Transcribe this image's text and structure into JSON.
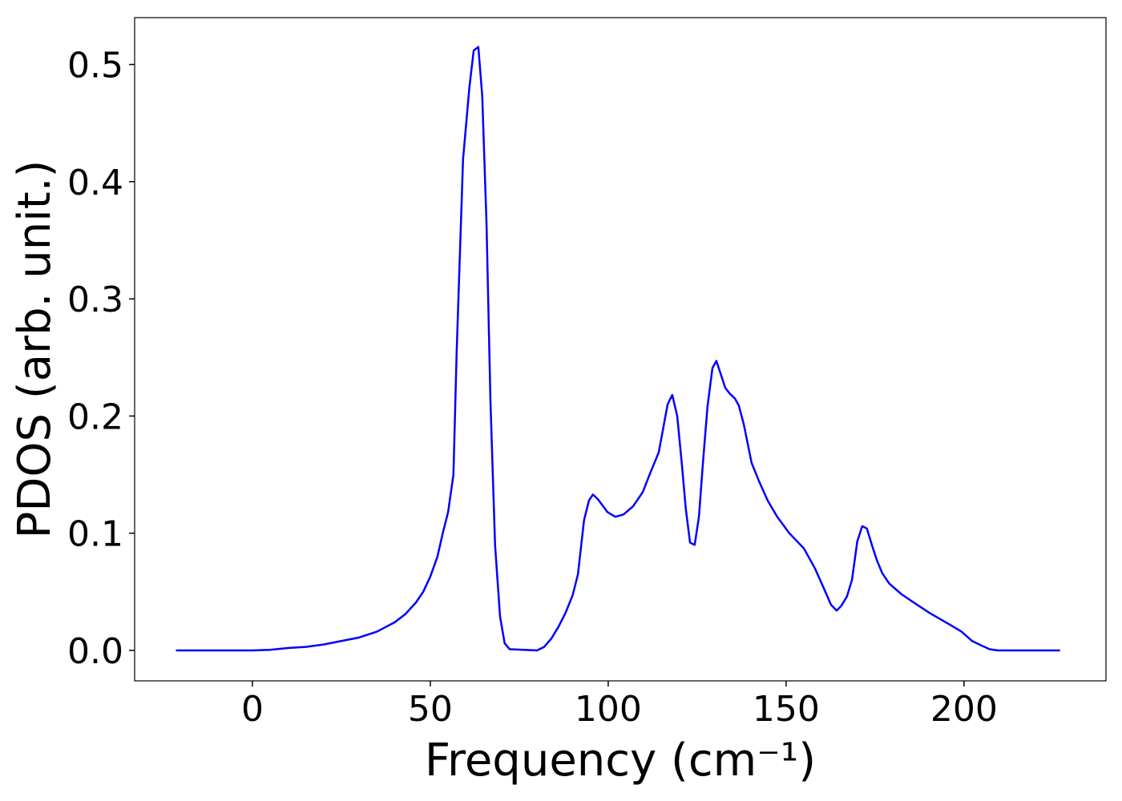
{
  "chart_data": {
    "type": "line",
    "xlabel": "Frequency (cm⁻¹)",
    "ylabel": "PDOS (arb. unit.)",
    "xlim": [
      -33.1,
      239.9
    ],
    "ylim": [
      -0.026,
      0.54
    ],
    "xticks": [
      0,
      50,
      100,
      150,
      200
    ],
    "yticks": [
      {
        "value": 0,
        "label": "0.0"
      },
      0.1,
      0.2,
      0.3,
      0.4,
      0.5
    ],
    "grid": false,
    "x": [
      -21.5,
      0,
      5,
      10,
      15,
      20,
      25,
      30,
      35,
      40,
      43,
      46,
      48,
      50,
      52,
      53.5,
      55,
      56.5,
      57.4,
      59.2,
      61,
      62.2,
      63.5,
      64.6,
      65.8,
      66.9,
      68.2,
      69.6,
      70.9,
      72.3,
      80,
      82,
      84,
      86,
      88,
      90,
      91.5,
      93.2,
      94.6,
      95.7,
      97.1,
      99.8,
      102,
      104.3,
      107,
      109.7,
      111.9,
      114.2,
      116.7,
      118,
      119.4,
      120.7,
      121.8,
      123,
      124.3,
      125.5,
      126.6,
      127.9,
      129.3,
      130.4,
      131.5,
      132.9,
      134.2,
      135.6,
      136.7,
      138.1,
      140.3,
      142.3,
      144.8,
      147.5,
      150.9,
      155,
      158.1,
      160.6,
      162.6,
      164.2,
      165.5,
      167.1,
      168.5,
      170,
      171.4,
      172.7,
      174.1,
      175.5,
      177,
      179,
      182.4,
      185.8,
      190.3,
      196,
      199.3,
      202.3,
      205,
      207.2,
      209.5,
      227
    ],
    "series": [
      {
        "name": "PDOS",
        "color": "#0000ff",
        "values": [
          0,
          0,
          0.0005,
          0.002,
          0.003,
          0.005,
          0.008,
          0.011,
          0.016,
          0.024,
          0.031,
          0.041,
          0.05,
          0.063,
          0.08,
          0.1,
          0.118,
          0.15,
          0.254,
          0.419,
          0.481,
          0.512,
          0.515,
          0.473,
          0.364,
          0.213,
          0.09,
          0.029,
          0.006,
          0.001,
          0,
          0.003,
          0.01,
          0.02,
          0.032,
          0.047,
          0.065,
          0.111,
          0.128,
          0.133,
          0.129,
          0.118,
          0.114,
          0.116,
          0.123,
          0.135,
          0.152,
          0.169,
          0.21,
          0.218,
          0.2,
          0.159,
          0.121,
          0.092,
          0.09,
          0.114,
          0.159,
          0.208,
          0.241,
          0.247,
          0.237,
          0.224,
          0.219,
          0.215,
          0.209,
          0.193,
          0.16,
          0.145,
          0.128,
          0.114,
          0.1,
          0.087,
          0.07,
          0.053,
          0.039,
          0.034,
          0.038,
          0.046,
          0.06,
          0.093,
          0.106,
          0.104,
          0.09,
          0.077,
          0.066,
          0.057,
          0.048,
          0.041,
          0.032,
          0.022,
          0.016,
          0.008,
          0.004,
          0.001,
          0,
          0
        ]
      }
    ]
  }
}
